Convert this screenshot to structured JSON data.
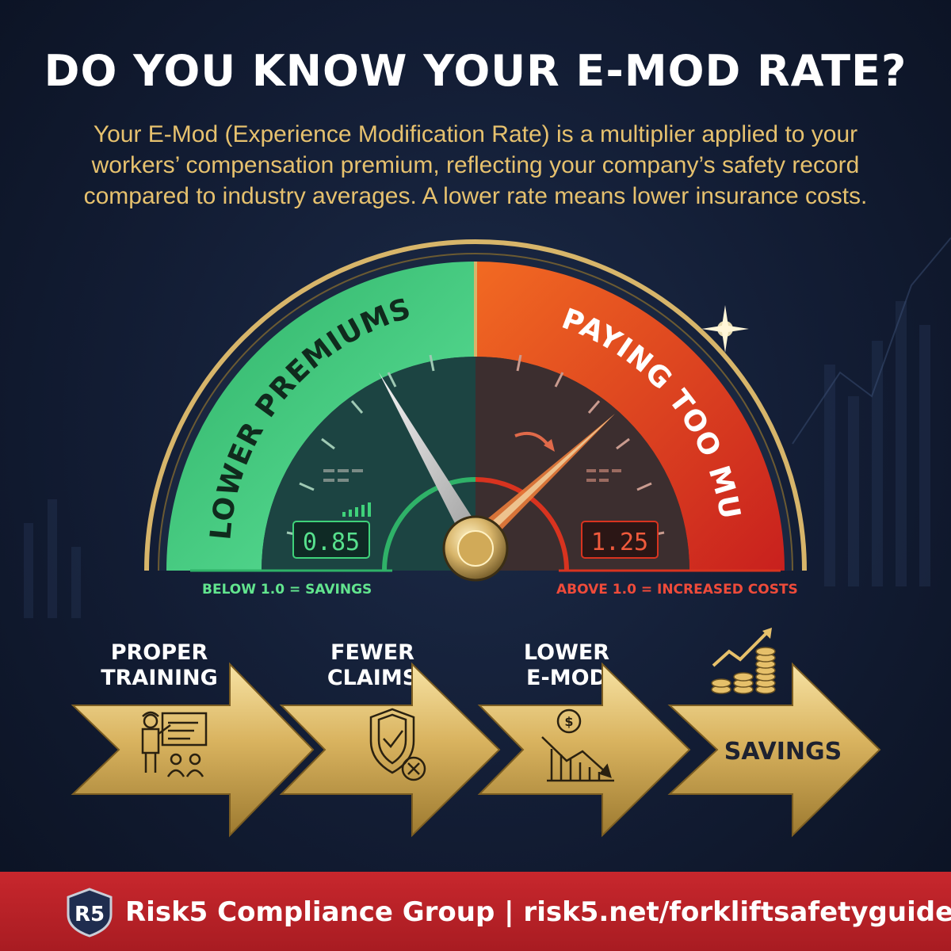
{
  "title": "DO YOU KNOW YOUR E-MOD RATE?",
  "description": "Your E-Mod (Experience Modification Rate) is a multiplier applied to your workers’ compensation premium, reflecting your company’s safety record compared to industry averages. A lower rate means lower insurance costs.",
  "gauge": {
    "left_label": "LOWER PREMIUMS",
    "right_label": "PAYING TOO MUCH",
    "left_readout": "0.85",
    "right_readout": "1.25",
    "left_note": "BELOW 1.0 = SAVINGS",
    "right_note": "ABOVE 1.0 = INCREASED COSTS",
    "colors": {
      "good": "#3fd27a",
      "bad": "#e8412f",
      "gold": "#d7b56a"
    }
  },
  "steps": [
    {
      "label_line1": "PROPER",
      "label_line2": "TRAINING",
      "icon": "trainer-icon"
    },
    {
      "label_line1": "FEWER",
      "label_line2": "CLAIMS",
      "icon": "shield-check-icon"
    },
    {
      "label_line1": "LOWER",
      "label_line2": "E-MOD",
      "icon": "declining-chart-dollar-icon"
    },
    {
      "label": "SAVINGS",
      "icon": "coins-growth-icon"
    }
  ],
  "footer": {
    "logo_text": "R5",
    "text": "Risk5 Compliance Group | risk5.net/forkliftsafetyguide"
  }
}
